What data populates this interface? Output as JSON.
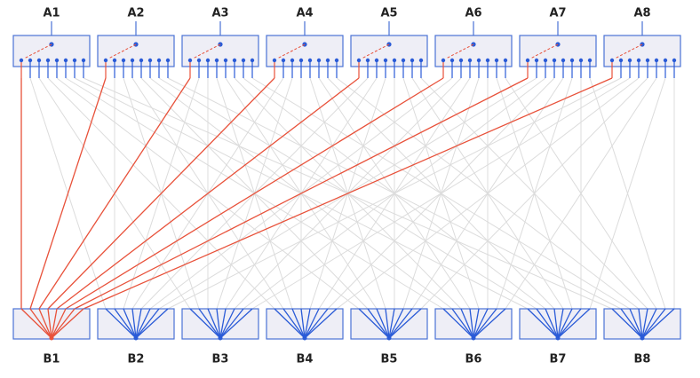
{
  "top_labels": [
    "A1",
    "A2",
    "A3",
    "A4",
    "A5",
    "A6",
    "A7",
    "A8"
  ],
  "bottom_labels": [
    "B1",
    "B2",
    "B3",
    "B4",
    "B5",
    "B6",
    "B7",
    "B8"
  ]
}
